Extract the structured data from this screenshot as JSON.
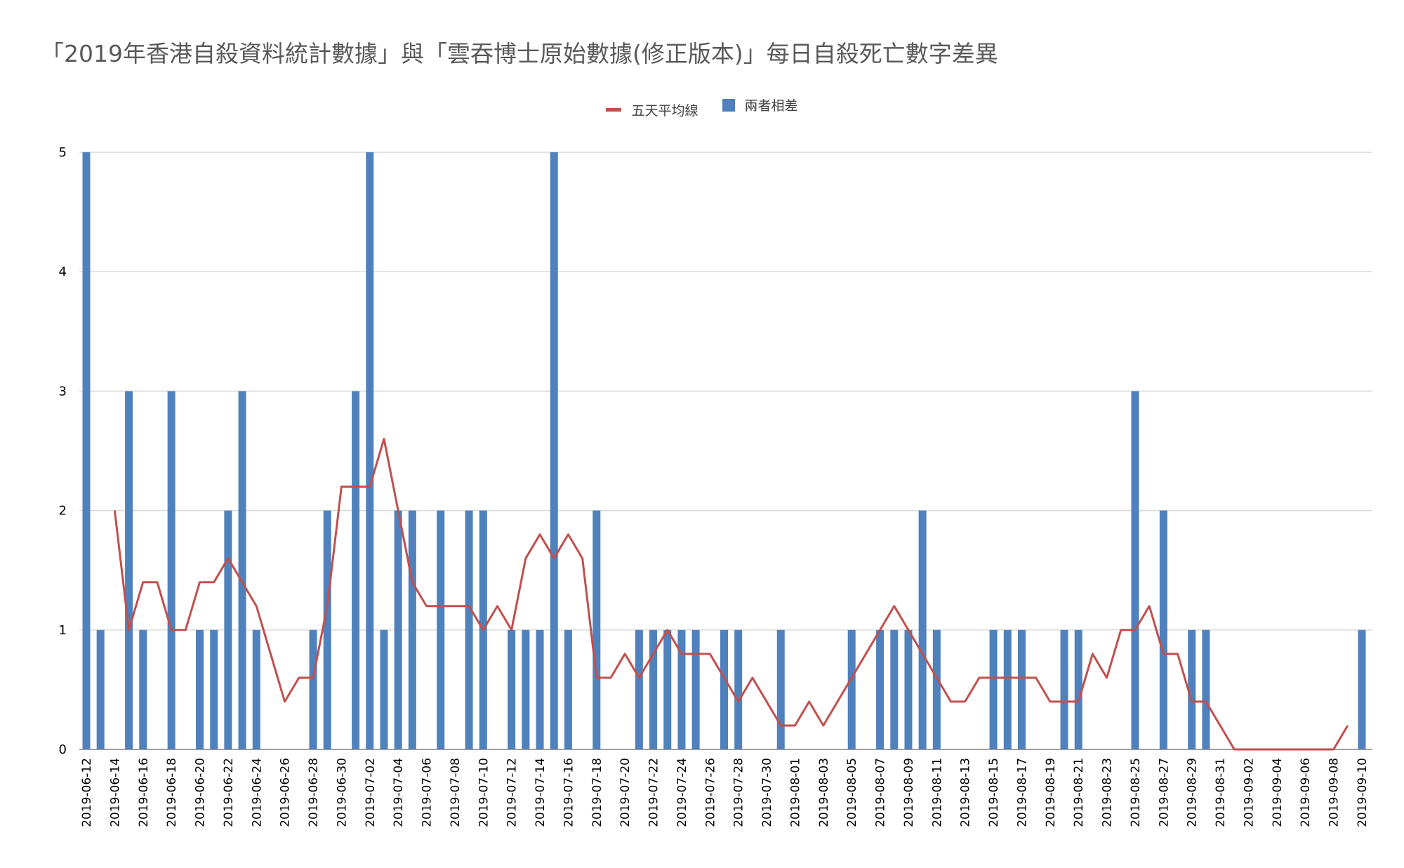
{
  "chart_data": {
    "type": "bar",
    "title": "「2019年香港自殺資料統計數據」與「雲吞博士原始數據(修正版本)」每日自殺死亡數字差異",
    "xlabel": "",
    "ylabel": "",
    "ylim": [
      0,
      5
    ],
    "yticks": [
      0,
      1,
      2,
      3,
      4,
      5
    ],
    "grid": true,
    "legend_position": "top-center",
    "colors": {
      "bar": "#4f81bd",
      "line": "#c0504d",
      "grid": "#d9d9d9",
      "axis": "#808080"
    },
    "categories": [
      "2019-06-12",
      "2019-06-13",
      "2019-06-14",
      "2019-06-15",
      "2019-06-16",
      "2019-06-17",
      "2019-06-18",
      "2019-06-19",
      "2019-06-20",
      "2019-06-21",
      "2019-06-22",
      "2019-06-23",
      "2019-06-24",
      "2019-06-25",
      "2019-06-26",
      "2019-06-27",
      "2019-06-28",
      "2019-06-29",
      "2019-06-30",
      "2019-07-01",
      "2019-07-02",
      "2019-07-03",
      "2019-07-04",
      "2019-07-05",
      "2019-07-06",
      "2019-07-07",
      "2019-07-08",
      "2019-07-09",
      "2019-07-10",
      "2019-07-11",
      "2019-07-12",
      "2019-07-13",
      "2019-07-14",
      "2019-07-15",
      "2019-07-16",
      "2019-07-17",
      "2019-07-18",
      "2019-07-19",
      "2019-07-20",
      "2019-07-21",
      "2019-07-22",
      "2019-07-23",
      "2019-07-24",
      "2019-07-25",
      "2019-07-26",
      "2019-07-27",
      "2019-07-28",
      "2019-07-29",
      "2019-07-30",
      "2019-07-31",
      "2019-08-01",
      "2019-08-02",
      "2019-08-03",
      "2019-08-04",
      "2019-08-05",
      "2019-08-06",
      "2019-08-07",
      "2019-08-08",
      "2019-08-09",
      "2019-08-10",
      "2019-08-11",
      "2019-08-12",
      "2019-08-13",
      "2019-08-14",
      "2019-08-15",
      "2019-08-16",
      "2019-08-17",
      "2019-08-18",
      "2019-08-19",
      "2019-08-20",
      "2019-08-21",
      "2019-08-22",
      "2019-08-23",
      "2019-08-24",
      "2019-08-25",
      "2019-08-26",
      "2019-08-27",
      "2019-08-28",
      "2019-08-29",
      "2019-08-30",
      "2019-08-31",
      "2019-09-01",
      "2019-09-02",
      "2019-09-03",
      "2019-09-04",
      "2019-09-05",
      "2019-09-06",
      "2019-09-07",
      "2019-09-08",
      "2019-09-09",
      "2019-09-10"
    ],
    "xtick_labels": [
      "2019-06-12",
      "2019-06-14",
      "2019-06-16",
      "2019-06-18",
      "2019-06-20",
      "2019-06-22",
      "2019-06-24",
      "2019-06-26",
      "2019-06-28",
      "2019-06-30",
      "2019-07-02",
      "2019-07-04",
      "2019-07-06",
      "2019-07-08",
      "2019-07-10",
      "2019-07-12",
      "2019-07-14",
      "2019-07-16",
      "2019-07-18",
      "2019-07-20",
      "2019-07-22",
      "2019-07-24",
      "2019-07-26",
      "2019-07-28",
      "2019-07-30",
      "2019-08-01",
      "2019-08-03",
      "2019-08-05",
      "2019-08-07",
      "2019-08-09",
      "2019-08-11",
      "2019-08-13",
      "2019-08-15",
      "2019-08-17",
      "2019-08-19",
      "2019-08-21",
      "2019-08-23",
      "2019-08-25",
      "2019-08-27",
      "2019-08-29",
      "2019-08-31",
      "2019-09-02",
      "2019-09-04",
      "2019-09-06",
      "2019-09-08",
      "2019-09-10"
    ],
    "series": [
      {
        "name": "兩者相差",
        "type": "bar",
        "values": [
          5,
          1,
          0,
          3,
          1,
          0,
          3,
          0,
          1,
          1,
          2,
          3,
          1,
          0,
          0,
          0,
          1,
          2,
          0,
          3,
          5,
          1,
          2,
          2,
          0,
          2,
          0,
          2,
          2,
          0,
          1,
          1,
          1,
          5,
          1,
          0,
          2,
          0,
          0,
          1,
          1,
          1,
          1,
          1,
          0,
          1,
          1,
          0,
          0,
          1,
          0,
          0,
          0,
          0,
          1,
          0,
          1,
          1,
          1,
          2,
          1,
          0,
          0,
          0,
          1,
          1,
          1,
          0,
          0,
          1,
          1,
          0,
          0,
          0,
          3,
          0,
          2,
          0,
          1,
          1,
          0,
          0,
          0,
          0,
          0,
          0,
          0,
          0,
          0,
          0,
          1
        ]
      },
      {
        "name": "五天平均線",
        "type": "line",
        "values": [
          null,
          null,
          2,
          1,
          1.4,
          1.4,
          1,
          1,
          1.4,
          1.4,
          1.6,
          1.4,
          1.2,
          0.8,
          0.4,
          0.6,
          0.6,
          1.2,
          2.2,
          2.2,
          2.2,
          2.6,
          2,
          1.4,
          1.2,
          1.2,
          1.2,
          1.2,
          1,
          1.2,
          1,
          1.6,
          1.8,
          1.6,
          1.8,
          1.6,
          0.6,
          0.6,
          0.8,
          0.6,
          0.8,
          1,
          0.8,
          0.8,
          0.8,
          0.6,
          0.4,
          0.6,
          0.4,
          0.2,
          0.2,
          0.4,
          0.2,
          0.4,
          0.6,
          0.8,
          1,
          1.2,
          1,
          0.8,
          0.6,
          0.4,
          0.4,
          0.6,
          0.6,
          0.6,
          0.6,
          0.6,
          0.4,
          0.4,
          0.4,
          0.8,
          0.6,
          1,
          1,
          1.2,
          0.8,
          0.8,
          0.4,
          0.4,
          0.2,
          0,
          0,
          0,
          0,
          0,
          0,
          0,
          0,
          0.2,
          null
        ]
      }
    ]
  }
}
